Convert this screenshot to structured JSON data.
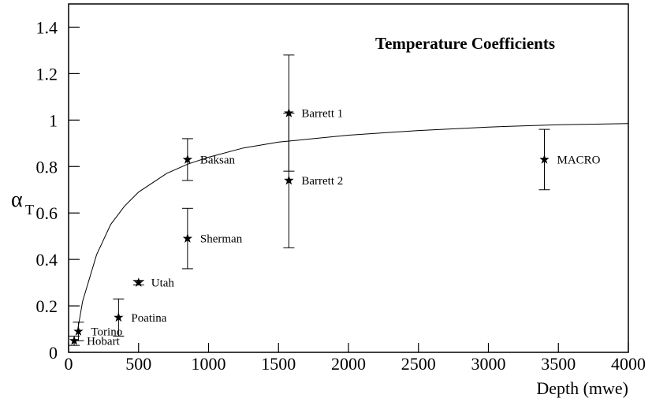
{
  "chart_data": {
    "type": "scatter",
    "annotation": "Temperature Coefficients",
    "xlabel": "Depth (mwe)",
    "ylabel": "α",
    "ylabel_sub": "T",
    "xlim": [
      0,
      4000
    ],
    "ylim": [
      0,
      1.5
    ],
    "xticks": [
      0,
      500,
      1000,
      1500,
      2000,
      2500,
      3000,
      3500,
      4000
    ],
    "yticks": [
      0,
      0.2,
      0.4,
      0.6,
      0.8,
      1,
      1.2,
      1.4
    ],
    "color": "#000000",
    "points": {
      "labels": [
        "Hobart",
        "Torino",
        "Poatina",
        "Utah",
        "Sherman",
        "Baksan",
        "Barrett 1",
        "Barrett 2",
        "MACRO"
      ],
      "x": [
        40,
        70,
        357,
        500,
        850,
        850,
        1574,
        1574,
        3400
      ],
      "values": [
        0.05,
        0.09,
        0.15,
        0.3,
        0.49,
        0.83,
        1.03,
        0.74,
        0.83
      ],
      "errors": [
        0.02,
        0.04,
        0.08,
        0.01,
        0.13,
        0.09,
        0.25,
        0.29,
        0.13
      ]
    },
    "curve": {
      "x": [
        60,
        100,
        200,
        300,
        400,
        500,
        700,
        850,
        1000,
        1250,
        1500,
        2000,
        2500,
        3000,
        3500,
        4000
      ],
      "values": [
        0.08,
        0.22,
        0.42,
        0.55,
        0.63,
        0.69,
        0.77,
        0.81,
        0.84,
        0.88,
        0.905,
        0.935,
        0.955,
        0.97,
        0.98,
        0.985
      ]
    }
  }
}
